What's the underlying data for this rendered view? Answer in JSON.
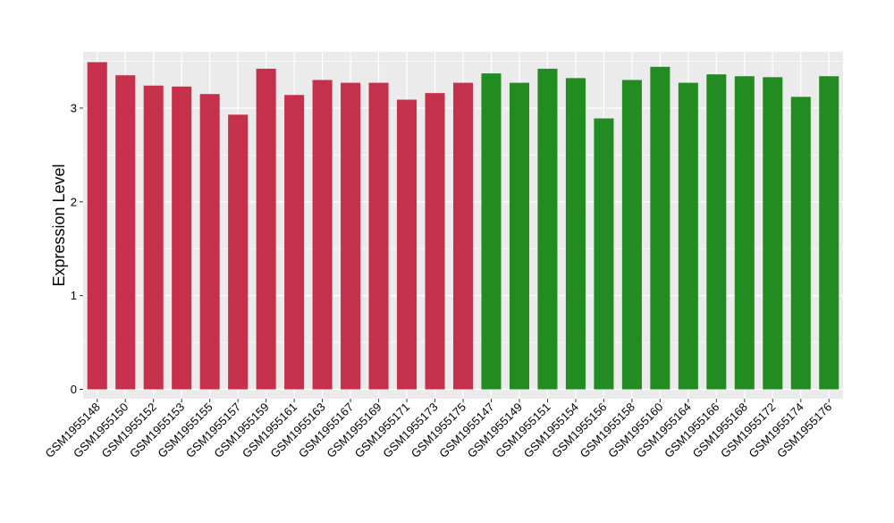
{
  "colors": {
    "panel_background": "#EBEBEB",
    "grid_line": "#FFFFFF",
    "series_1": "#C5304A",
    "series_2": "#228B22",
    "axis_text": "#000000"
  },
  "chart_data": {
    "type": "bar",
    "title": "",
    "xlabel": "",
    "ylabel": "Expression Level",
    "ylim": [
      -0.1,
      3.6
    ],
    "yticks": [
      0,
      1,
      2,
      3
    ],
    "grid": true,
    "legend": "none",
    "categories": [
      "GSM1955148",
      "GSM1955150",
      "GSM1955152",
      "GSM1955153",
      "GSM1955155",
      "GSM1955157",
      "GSM1955159",
      "GSM1955161",
      "GSM1955163",
      "GSM1955167",
      "GSM1955169",
      "GSM1955171",
      "GSM1955173",
      "GSM1955175",
      "GSM1955147",
      "GSM1955149",
      "GSM1955151",
      "GSM1955154",
      "GSM1955156",
      "GSM1955158",
      "GSM1955160",
      "GSM1955164",
      "GSM1955166",
      "GSM1955168",
      "GSM1955172",
      "GSM1955174",
      "GSM1955176"
    ],
    "values": [
      3.49,
      3.35,
      3.24,
      3.23,
      3.15,
      2.93,
      3.42,
      3.14,
      3.3,
      3.27,
      3.27,
      3.09,
      3.16,
      3.27,
      3.37,
      3.27,
      3.42,
      3.32,
      2.89,
      3.3,
      3.44,
      3.27,
      3.36,
      3.34,
      3.33,
      3.12,
      3.34
    ],
    "bar_colors": [
      "#C5304A",
      "#C5304A",
      "#C5304A",
      "#C5304A",
      "#C5304A",
      "#C5304A",
      "#C5304A",
      "#C5304A",
      "#C5304A",
      "#C5304A",
      "#C5304A",
      "#C5304A",
      "#C5304A",
      "#C5304A",
      "#228B22",
      "#228B22",
      "#228B22",
      "#228B22",
      "#228B22",
      "#228B22",
      "#228B22",
      "#228B22",
      "#228B22",
      "#228B22",
      "#228B22",
      "#228B22",
      "#228B22"
    ]
  }
}
